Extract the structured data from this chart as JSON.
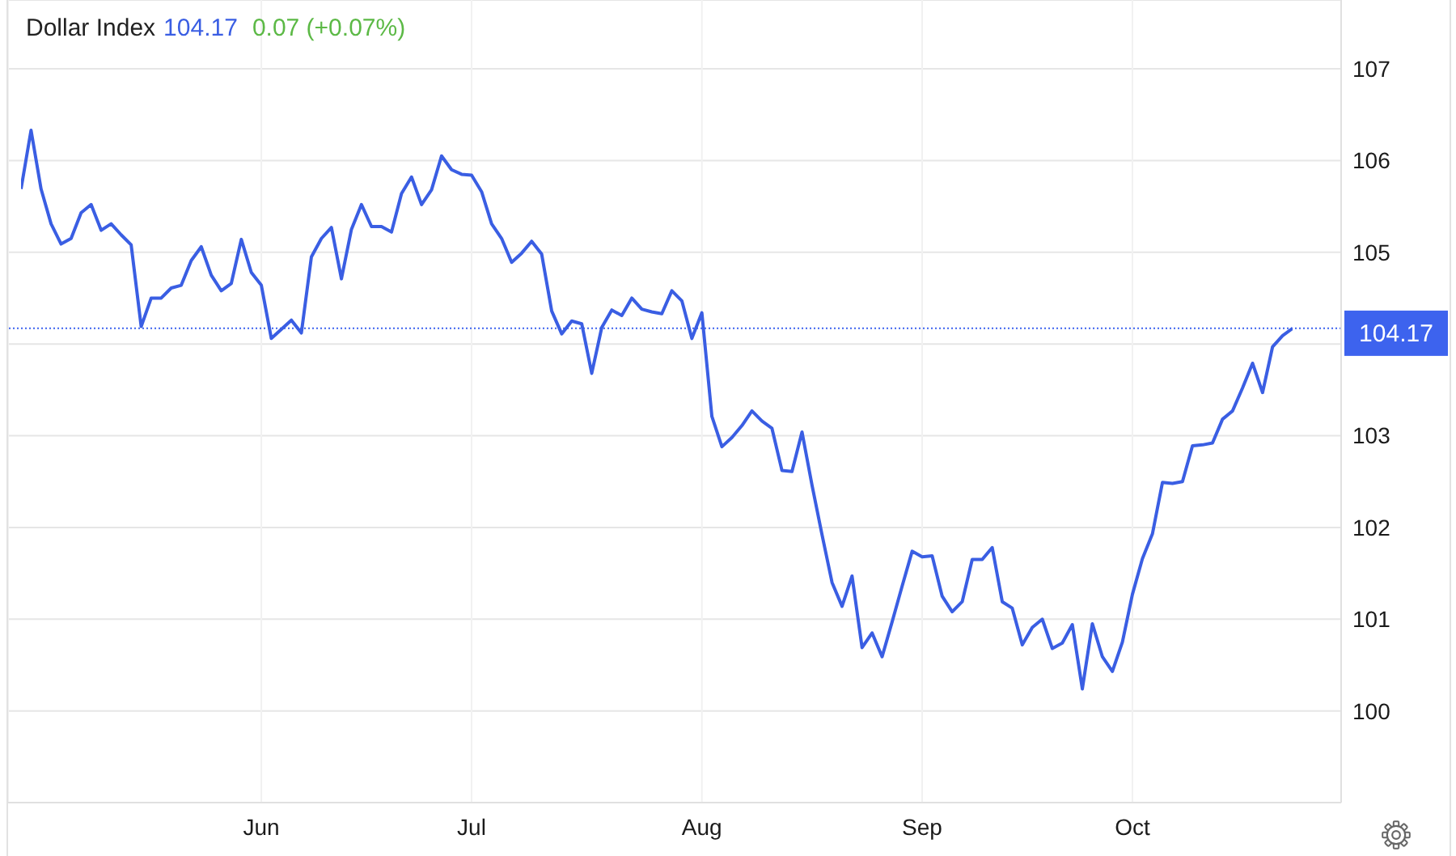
{
  "chart_data": {
    "type": "line",
    "title": "Dollar Index",
    "annotations": [
      "104.17",
      "0.07 (+0.07%)"
    ],
    "categories": [
      null,
      null,
      null,
      null,
      null,
      null,
      null,
      null,
      null,
      null,
      null,
      null,
      null,
      null,
      null,
      null,
      null,
      null,
      null,
      null,
      null,
      null,
      null,
      null,
      "Jun",
      null,
      null,
      null,
      null,
      null,
      null,
      null,
      null,
      null,
      null,
      null,
      null,
      null,
      null,
      null,
      null,
      null,
      null,
      null,
      null,
      "Jul",
      null,
      null,
      null,
      null,
      null,
      null,
      null,
      null,
      null,
      null,
      null,
      null,
      null,
      null,
      null,
      null,
      null,
      null,
      null,
      null,
      null,
      null,
      "Aug",
      null,
      null,
      null,
      null,
      null,
      null,
      null,
      null,
      null,
      null,
      null,
      null,
      null,
      null,
      null,
      null,
      null,
      null,
      null,
      null,
      null,
      "Sep",
      null,
      null,
      null,
      null,
      null,
      null,
      null,
      null,
      null,
      null,
      null,
      null,
      null,
      null,
      null,
      null,
      null,
      null,
      null,
      null,
      "Oct",
      null,
      null,
      null,
      null,
      null,
      null,
      null,
      null,
      null,
      null,
      null,
      null,
      null,
      null,
      null,
      null
    ],
    "series": [
      {
        "color": "#3a5ee3",
        "values": [
          105.69,
          106.33,
          105.69,
          105.31,
          105.09,
          105.15,
          105.43,
          105.52,
          105.24,
          105.31,
          105.19,
          105.08,
          104.19,
          104.5,
          104.5,
          104.61,
          104.64,
          104.91,
          105.06,
          104.75,
          104.58,
          104.66,
          105.14,
          104.78,
          104.64,
          104.06,
          104.16,
          104.26,
          104.12,
          104.95,
          105.15,
          105.27,
          104.71,
          105.25,
          105.52,
          105.28,
          105.28,
          105.22,
          105.64,
          105.82,
          105.52,
          105.68,
          106.05,
          105.9,
          105.85,
          105.84,
          105.66,
          105.31,
          105.15,
          104.89,
          104.99,
          105.12,
          104.98,
          104.36,
          104.11,
          104.25,
          104.22,
          103.68,
          104.18,
          104.37,
          104.31,
          104.5,
          104.38,
          104.35,
          104.33,
          104.58,
          104.47,
          104.06,
          104.34,
          103.21,
          102.88,
          102.98,
          103.11,
          103.27,
          103.16,
          103.08,
          102.62,
          102.61,
          103.04,
          102.46,
          101.92,
          101.4,
          101.14,
          101.47,
          100.69,
          100.85,
          100.59,
          100.97,
          101.36,
          101.74,
          101.68,
          101.69,
          101.25,
          101.08,
          101.19,
          101.65,
          101.65,
          101.78,
          101.19,
          101.12,
          100.72,
          100.91,
          101.0,
          100.68,
          100.74,
          100.94,
          100.24,
          100.95,
          100.59,
          100.43,
          100.75,
          101.27,
          101.66,
          101.93,
          102.49,
          102.48,
          102.5,
          102.89,
          102.9,
          102.92,
          103.18,
          103.27,
          103.52,
          103.79,
          103.47,
          103.97,
          104.09,
          104.17
        ]
      }
    ],
    "ylim": [
      99,
      107.75
    ],
    "yticks": [
      100,
      101,
      102,
      103,
      {
        "value": 104,
        "label": null
      },
      105,
      106,
      107
    ],
    "grid": true,
    "ref_lines": [
      {
        "axis": "y",
        "value": 104.17,
        "label": "104.17",
        "color": "#3d63ee",
        "line_style": "dotted"
      }
    ]
  }
}
